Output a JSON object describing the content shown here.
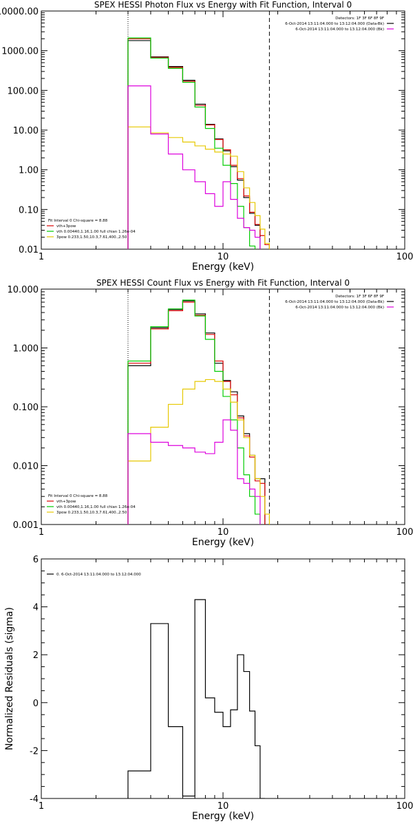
{
  "chart_data": [
    {
      "type": "line",
      "title": "SPEX HESSI Photon Flux vs Energy with Fit Function, Interval 0",
      "xlabel": "Energy (keV)",
      "ylabel": "",
      "xscale": "log",
      "yscale": "log",
      "xlim": [
        1,
        100
      ],
      "ylim": [
        0.01,
        10000
      ],
      "xticks": [
        {
          "v": 1,
          "label": "1"
        },
        {
          "v": 10,
          "label": "10"
        },
        {
          "v": 100,
          "label": "100"
        }
      ],
      "yticks": [
        {
          "v": 10000,
          "label": "10000.00"
        },
        {
          "v": 1000,
          "label": "1000.00"
        },
        {
          "v": 100,
          "label": "100.00"
        },
        {
          "v": 10,
          "label": "10.00"
        },
        {
          "v": 1,
          "label": "1.00"
        },
        {
          "v": 0.1,
          "label": "0.10"
        },
        {
          "v": 0.01,
          "label": "0.01"
        }
      ],
      "vlines": [
        {
          "x": 3,
          "style": "dotted"
        },
        {
          "x": 18,
          "style": "dashed"
        }
      ],
      "edges": [
        3,
        4,
        5,
        6,
        7,
        8,
        9,
        10,
        11,
        12,
        13,
        14,
        15,
        16,
        17,
        18,
        19,
        20
      ],
      "series": [
        {
          "name": "",
          "color": "#000000",
          "values": [
            1800,
            700,
            400,
            180,
            45,
            14,
            6,
            3,
            1.2,
            0.55,
            0.2,
            0.08,
            0.04,
            null,
            null,
            null,
            null
          ]
        },
        {
          "name": "vth+3pow",
          "color": "#dd0000",
          "values": [
            2000,
            680,
            380,
            170,
            42,
            13.5,
            5.8,
            3.2,
            1.3,
            0.6,
            0.22,
            0.085,
            0.042,
            0.022,
            0.013,
            null,
            null
          ]
        },
        {
          "name": "vth 0.00440,1.16,1.00",
          "color": "#00cc00",
          "values": [
            2100,
            650,
            360,
            160,
            38,
            11,
            3.5,
            1.3,
            0.45,
            0.12,
            0.035,
            0.012,
            null,
            null,
            null,
            null,
            null
          ]
        },
        {
          "name": "3pow 0.233,1.50,10.3,7.61,400.,2.50",
          "color": "#e6c800",
          "values": [
            12,
            8.5,
            6.5,
            5,
            4,
            3.3,
            2.8,
            2.5,
            2.2,
            0.9,
            0.35,
            0.15,
            0.07,
            0.032,
            0.014,
            null,
            null
          ]
        },
        {
          "name": "",
          "color": "#dd00dd",
          "values": [
            130,
            8,
            2.5,
            1,
            0.5,
            0.25,
            0.12,
            0.5,
            0.18,
            0.06,
            0.035,
            0.03,
            0.02,
            null,
            null,
            null,
            null
          ]
        }
      ],
      "legend_left": [
        {
          "text": "Fit Interval 0   Chi-square = 8.88",
          "color": "#000000"
        },
        {
          "text": "vth+3pow",
          "color": "#dd0000"
        },
        {
          "text": "vth 0.00440,1.16,1.00   full chian 1.26e-04",
          "color": "#00cc00"
        },
        {
          "text": "3pow 0.233,1.50,10.3,7.61,400.,2.50",
          "color": "#e6c800"
        }
      ],
      "legend_right": [
        {
          "text": "Detectors: 1F 3F 6F 8F 9F",
          "color": ""
        },
        {
          "text": "6-Oct-2014 13:11:04.000 to 13:12:04.000 (Data-Bk)",
          "color": "#000000"
        },
        {
          "text": "6-Oct-2014 13:11:04.000 to 13:12:04.000 (Bk)",
          "color": "#dd00dd"
        }
      ]
    },
    {
      "type": "line",
      "title": "SPEX HESSI Count Flux vs Energy with Fit Function, Interval 0",
      "xlabel": "Energy (keV)",
      "ylabel": "",
      "xscale": "log",
      "yscale": "log",
      "xlim": [
        1,
        100
      ],
      "ylim": [
        0.001,
        10
      ],
      "xticks": [
        {
          "v": 1,
          "label": "1"
        },
        {
          "v": 10,
          "label": "10"
        },
        {
          "v": 100,
          "label": "100"
        }
      ],
      "yticks": [
        {
          "v": 10,
          "label": "10.000"
        },
        {
          "v": 1,
          "label": "1.000"
        },
        {
          "v": 0.1,
          "label": "0.100"
        },
        {
          "v": 0.01,
          "label": "0.010"
        },
        {
          "v": 0.001,
          "label": "0.001"
        }
      ],
      "vlines": [
        {
          "x": 3,
          "style": "dotted"
        },
        {
          "x": 18,
          "style": "dashed"
        }
      ],
      "edges": [
        3,
        4,
        5,
        6,
        7,
        8,
        9,
        10,
        11,
        12,
        13,
        14,
        15,
        16,
        17,
        18,
        19,
        20,
        21,
        22
      ],
      "series": [
        {
          "name": "",
          "color": "#000000",
          "values": [
            0.5,
            2.2,
            4.5,
            6.3,
            3.8,
            1.8,
            0.55,
            0.28,
            0.18,
            0.07,
            0.035,
            0.015,
            0.006,
            0.006,
            null,
            null,
            null,
            null,
            null
          ]
        },
        {
          "name": "vth+3pow",
          "color": "#dd0000",
          "values": [
            0.55,
            2.1,
            4.3,
            6.0,
            3.6,
            1.7,
            0.6,
            0.27,
            0.16,
            0.065,
            0.032,
            0.014,
            0.0055,
            0.005,
            null,
            null,
            null,
            null,
            null
          ]
        },
        {
          "name": "vth 0.00440,1.16,1.00",
          "color": "#00cc00",
          "values": [
            0.6,
            2.3,
            4.6,
            6.5,
            3.5,
            1.4,
            0.4,
            0.15,
            0.06,
            0.02,
            0.007,
            0.003,
            0.0015,
            null,
            null,
            null,
            null,
            null,
            null
          ]
        },
        {
          "name": "3pow 0.233,1.50,10.3,7.61,400.,2.50",
          "color": "#e6c800",
          "values": [
            0.012,
            0.045,
            0.11,
            0.2,
            0.27,
            0.29,
            0.27,
            0.2,
            0.12,
            0.06,
            0.03,
            0.015,
            0.006,
            0.003,
            0.0015,
            null,
            null,
            null,
            null
          ]
        },
        {
          "name": "",
          "color": "#dd00dd",
          "values": [
            0.035,
            0.025,
            0.022,
            0.02,
            0.017,
            0.016,
            0.025,
            0.06,
            0.04,
            0.006,
            0.005,
            0.004,
            0.003,
            null,
            null,
            null,
            null,
            null,
            null
          ]
        }
      ],
      "legend_left": [
        {
          "text": "Fit Interval 0   Chi-square = 8.88",
          "color": "#000000"
        },
        {
          "text": "vth+3pow",
          "color": "#dd0000"
        },
        {
          "text": "vth 0.00440,1.16,1.00   full chian 1.26e-04",
          "color": "#00cc00"
        },
        {
          "text": "3pow 0.233,1.50,10.3,7.61,400.,2.50",
          "color": "#e6c800"
        }
      ],
      "legend_right": [
        {
          "text": "Detectors: 1F 3F 6F 8F 9F",
          "color": ""
        },
        {
          "text": "6-Oct-2014 13:11:04.000 to 13:12:04.000 (Data-Bk)",
          "color": "#000000"
        },
        {
          "text": "6-Oct-2014 13:11:04.000 to 13:12:04.000 (Bk)",
          "color": "#dd00dd"
        }
      ]
    },
    {
      "type": "line",
      "title": "",
      "xlabel": "Energy (keV)",
      "ylabel": "Normalized Residuals (sigma)",
      "xscale": "log",
      "yscale": "linear",
      "xlim": [
        1,
        100
      ],
      "ylim": [
        -4,
        6
      ],
      "xticks": [
        {
          "v": 1,
          "label": "1"
        },
        {
          "v": 10,
          "label": "10"
        },
        {
          "v": 100,
          "label": "100"
        }
      ],
      "yticks": [
        {
          "v": 6,
          "label": "6"
        },
        {
          "v": 4,
          "label": "4"
        },
        {
          "v": 2,
          "label": "2"
        },
        {
          "v": 0,
          "label": "0"
        },
        {
          "v": -2,
          "label": "-2"
        },
        {
          "v": -4,
          "label": "-4"
        }
      ],
      "vlines": [],
      "edges": [
        3,
        4,
        5,
        6,
        7,
        8,
        9,
        10,
        11,
        12,
        13,
        14,
        15,
        16,
        17,
        18
      ],
      "series": [
        {
          "name": "0. 6-Oct-2014 13:11:04.000 to 13:12:04.000",
          "color": "#000000",
          "values": [
            -2.85,
            3.3,
            -1.0,
            -3.9,
            4.3,
            0.2,
            -0.4,
            -1.0,
            -0.3,
            2.0,
            1.3,
            -0.35,
            -1.8,
            -4.0,
            null
          ]
        }
      ],
      "legend_left": [
        {
          "text": "0. 6-Oct-2014 13:11:04.000 to 13:12:04.000",
          "color": "#000000"
        }
      ],
      "legend_right": []
    }
  ]
}
